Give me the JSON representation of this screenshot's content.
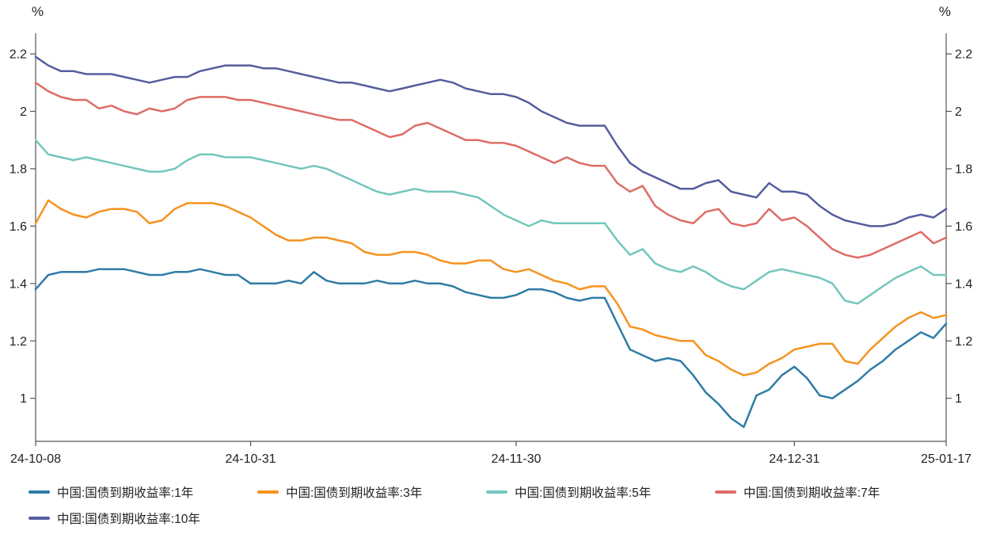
{
  "chart_data": {
    "type": "line",
    "n_points": 73,
    "y_axis": {
      "unit": "%",
      "ticks": [
        2.2,
        2,
        1.8,
        1.6,
        1.4,
        1.2,
        1
      ],
      "ylim": [
        0.85,
        2.25
      ]
    },
    "x_ticks": [
      {
        "index": 0,
        "label": "24-10-08"
      },
      {
        "index": 17,
        "label": "24-10-31"
      },
      {
        "index": 38,
        "label": "24-11-30"
      },
      {
        "index": 60,
        "label": "24-12-31"
      },
      {
        "index": 72,
        "label": "25-01-17"
      }
    ],
    "legend_position": "bottom",
    "series": [
      {
        "name": "中国:国债到期收益率:1年",
        "color": "#2f7ba6",
        "values": [
          1.38,
          1.43,
          1.44,
          1.44,
          1.44,
          1.45,
          1.45,
          1.45,
          1.44,
          1.43,
          1.43,
          1.44,
          1.44,
          1.45,
          1.44,
          1.43,
          1.43,
          1.4,
          1.4,
          1.4,
          1.41,
          1.4,
          1.44,
          1.41,
          1.4,
          1.4,
          1.4,
          1.41,
          1.4,
          1.4,
          1.41,
          1.4,
          1.4,
          1.39,
          1.37,
          1.36,
          1.35,
          1.35,
          1.36,
          1.38,
          1.38,
          1.37,
          1.35,
          1.34,
          1.35,
          1.35,
          1.26,
          1.17,
          1.15,
          1.13,
          1.14,
          1.13,
          1.08,
          1.02,
          0.98,
          0.93,
          0.9,
          1.01,
          1.03,
          1.08,
          1.11,
          1.07,
          1.01,
          1.0,
          1.03,
          1.06,
          1.1,
          1.13,
          1.17,
          1.2,
          1.23,
          1.21,
          1.26
        ]
      },
      {
        "name": "中国:国债到期收益率:3年",
        "color": "#f6921e",
        "values": [
          1.61,
          1.69,
          1.66,
          1.64,
          1.63,
          1.65,
          1.66,
          1.66,
          1.65,
          1.61,
          1.62,
          1.66,
          1.68,
          1.68,
          1.68,
          1.67,
          1.65,
          1.63,
          1.6,
          1.57,
          1.55,
          1.55,
          1.56,
          1.56,
          1.55,
          1.54,
          1.51,
          1.5,
          1.5,
          1.51,
          1.51,
          1.5,
          1.48,
          1.47,
          1.47,
          1.48,
          1.48,
          1.45,
          1.44,
          1.45,
          1.43,
          1.41,
          1.4,
          1.38,
          1.39,
          1.39,
          1.33,
          1.25,
          1.24,
          1.22,
          1.21,
          1.2,
          1.2,
          1.15,
          1.13,
          1.1,
          1.08,
          1.09,
          1.12,
          1.14,
          1.17,
          1.18,
          1.19,
          1.19,
          1.13,
          1.12,
          1.17,
          1.21,
          1.25,
          1.28,
          1.3,
          1.28,
          1.29
        ]
      },
      {
        "name": "中国:国债到期收益率:5年",
        "color": "#73c6bd",
        "values": [
          1.9,
          1.85,
          1.84,
          1.83,
          1.84,
          1.83,
          1.82,
          1.81,
          1.8,
          1.79,
          1.79,
          1.8,
          1.83,
          1.85,
          1.85,
          1.84,
          1.84,
          1.84,
          1.83,
          1.82,
          1.81,
          1.8,
          1.81,
          1.8,
          1.78,
          1.76,
          1.74,
          1.72,
          1.71,
          1.72,
          1.73,
          1.72,
          1.72,
          1.72,
          1.71,
          1.7,
          1.67,
          1.64,
          1.62,
          1.6,
          1.62,
          1.61,
          1.61,
          1.61,
          1.61,
          1.61,
          1.55,
          1.5,
          1.52,
          1.47,
          1.45,
          1.44,
          1.46,
          1.44,
          1.41,
          1.39,
          1.38,
          1.41,
          1.44,
          1.45,
          1.44,
          1.43,
          1.42,
          1.4,
          1.34,
          1.33,
          1.36,
          1.39,
          1.42,
          1.44,
          1.46,
          1.43,
          1.43
        ]
      },
      {
        "name": "中国:国债到期收益率:7年",
        "color": "#de6c66",
        "values": [
          2.1,
          2.07,
          2.05,
          2.04,
          2.04,
          2.01,
          2.02,
          2.0,
          1.99,
          2.01,
          2.0,
          2.01,
          2.04,
          2.05,
          2.05,
          2.05,
          2.04,
          2.04,
          2.03,
          2.02,
          2.01,
          2.0,
          1.99,
          1.98,
          1.97,
          1.97,
          1.95,
          1.93,
          1.91,
          1.92,
          1.95,
          1.96,
          1.94,
          1.92,
          1.9,
          1.9,
          1.89,
          1.89,
          1.88,
          1.86,
          1.84,
          1.82,
          1.84,
          1.82,
          1.81,
          1.81,
          1.75,
          1.72,
          1.74,
          1.67,
          1.64,
          1.62,
          1.61,
          1.65,
          1.66,
          1.61,
          1.6,
          1.61,
          1.66,
          1.62,
          1.63,
          1.6,
          1.56,
          1.52,
          1.5,
          1.49,
          1.5,
          1.52,
          1.54,
          1.56,
          1.58,
          1.54,
          1.56
        ]
      },
      {
        "name": "中国:国债到期收益率:10年",
        "color": "#555d9e",
        "values": [
          2.19,
          2.16,
          2.14,
          2.14,
          2.13,
          2.13,
          2.13,
          2.12,
          2.11,
          2.1,
          2.11,
          2.12,
          2.12,
          2.14,
          2.15,
          2.16,
          2.16,
          2.16,
          2.15,
          2.15,
          2.14,
          2.13,
          2.12,
          2.11,
          2.1,
          2.1,
          2.09,
          2.08,
          2.07,
          2.08,
          2.09,
          2.1,
          2.11,
          2.1,
          2.08,
          2.07,
          2.06,
          2.06,
          2.05,
          2.03,
          2.0,
          1.98,
          1.96,
          1.95,
          1.95,
          1.95,
          1.88,
          1.82,
          1.79,
          1.77,
          1.75,
          1.73,
          1.73,
          1.75,
          1.76,
          1.72,
          1.71,
          1.7,
          1.75,
          1.72,
          1.72,
          1.71,
          1.67,
          1.64,
          1.62,
          1.61,
          1.6,
          1.6,
          1.61,
          1.63,
          1.64,
          1.63,
          1.66
        ]
      }
    ]
  }
}
